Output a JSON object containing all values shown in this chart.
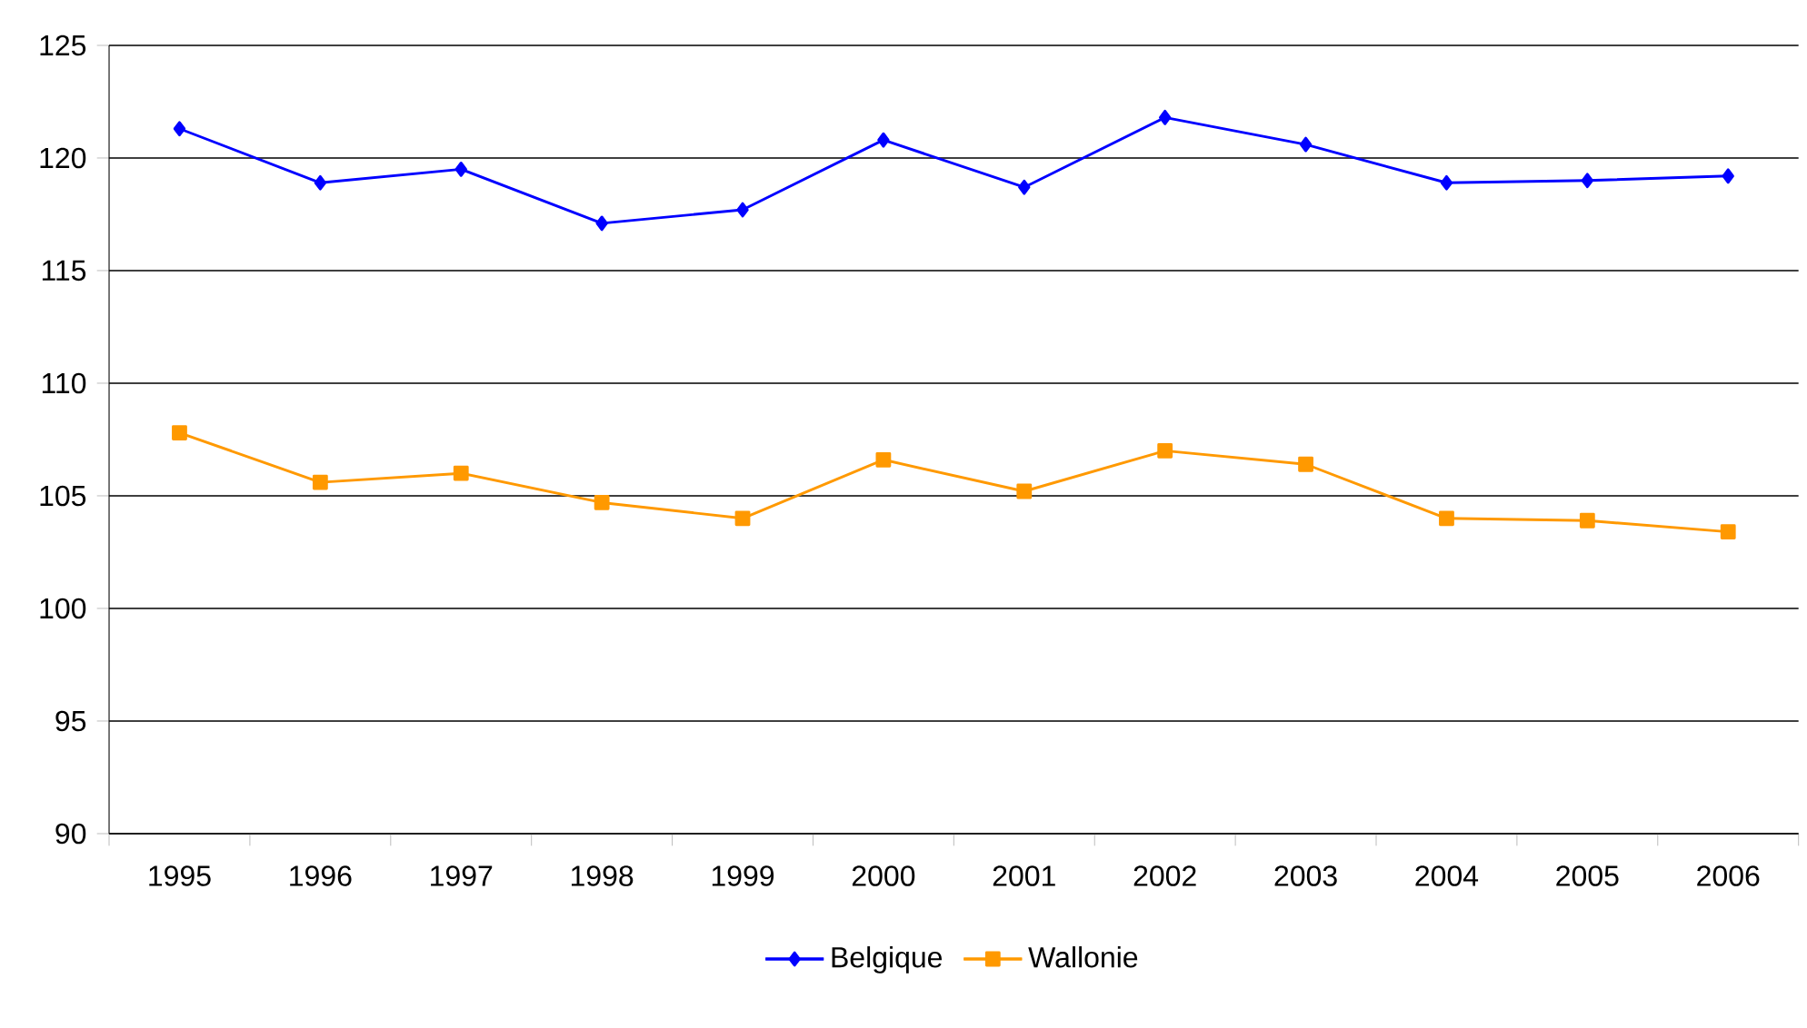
{
  "chart_data": {
    "type": "line",
    "categories": [
      "1995",
      "1996",
      "1997",
      "1998",
      "1999",
      "2000",
      "2001",
      "2002",
      "2003",
      "2004",
      "2005",
      "2006"
    ],
    "series": [
      {
        "name": "Belgique",
        "color": "#0000ff",
        "marker": "diamond",
        "values": [
          121.3,
          118.9,
          119.5,
          117.1,
          117.7,
          120.8,
          118.7,
          121.8,
          120.6,
          118.9,
          119.0,
          119.2
        ]
      },
      {
        "name": "Wallonie",
        "color": "#ff9900",
        "marker": "square",
        "values": [
          107.8,
          105.6,
          106.0,
          104.7,
          104.0,
          106.6,
          105.2,
          107.0,
          106.4,
          104.0,
          103.9,
          103.4
        ]
      }
    ],
    "ylim": [
      90,
      125
    ],
    "yticks": [
      90,
      95,
      100,
      105,
      110,
      115,
      120,
      125
    ],
    "grid": "y",
    "legend": "bottom",
    "line_style": "solid"
  }
}
